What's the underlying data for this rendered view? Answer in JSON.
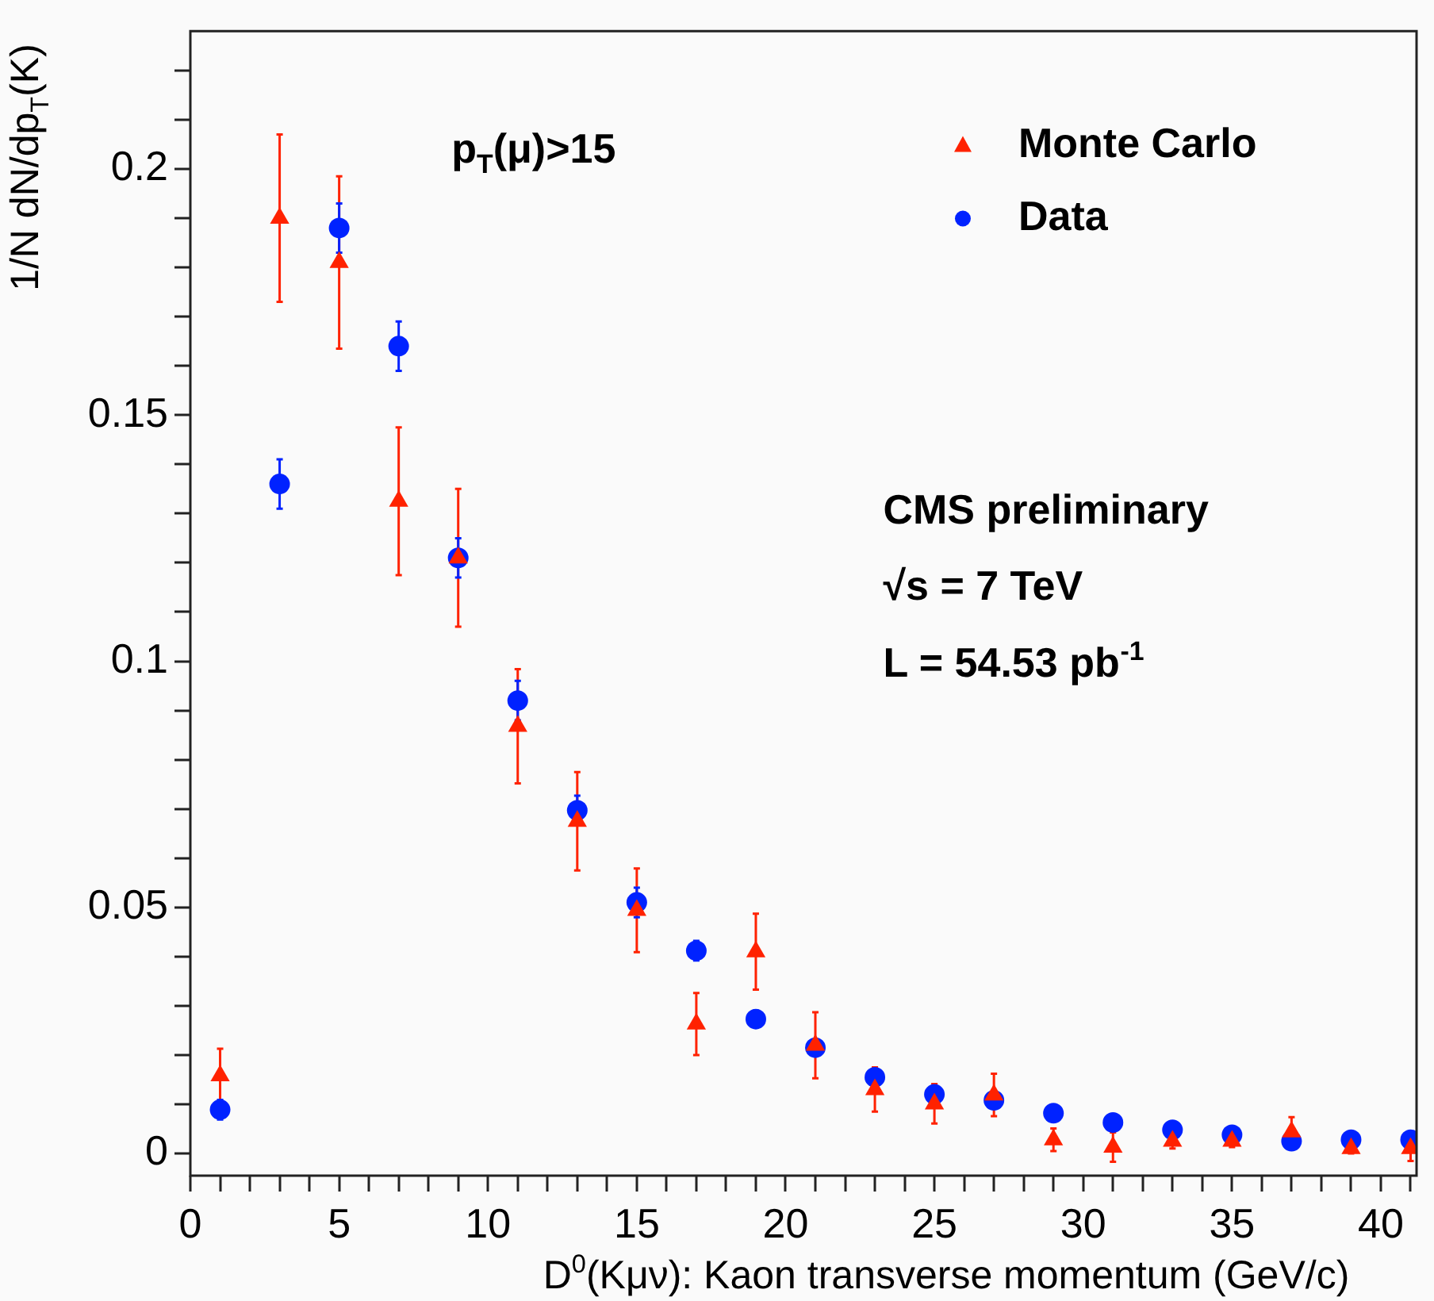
{
  "chart_data": {
    "type": "scatter",
    "xlabel": "D$^{0}$(Kμν): Kaon transverse momentum (GeV/c)",
    "ylabel": "1/N dN/dp$_{T}$(K)",
    "annotations": [
      "p$_{T}$(μ)>15",
      "CMS preliminary",
      "√s = 7 TeV",
      "L = 54.53 pb$^{-1}$"
    ],
    "legend": "top right",
    "grid": false,
    "xlim": [
      0,
      41.2
    ],
    "ylim": [
      -0.0045,
      0.228
    ],
    "xticks": [
      0,
      {
        "value": 1,
        "label": null
      },
      {
        "value": 2,
        "label": null
      },
      {
        "value": 3,
        "label": null
      },
      {
        "value": 4,
        "label": null
      },
      5,
      {
        "value": 6,
        "label": null
      },
      {
        "value": 7,
        "label": null
      },
      {
        "value": 8,
        "label": null
      },
      {
        "value": 9,
        "label": null
      },
      10,
      {
        "value": 11,
        "label": null
      },
      {
        "value": 12,
        "label": null
      },
      {
        "value": 13,
        "label": null
      },
      {
        "value": 14,
        "label": null
      },
      15,
      {
        "value": 16,
        "label": null
      },
      {
        "value": 17,
        "label": null
      },
      {
        "value": 18,
        "label": null
      },
      {
        "value": 19,
        "label": null
      },
      20,
      {
        "value": 21,
        "label": null
      },
      {
        "value": 22,
        "label": null
      },
      {
        "value": 23,
        "label": null
      },
      {
        "value": 24,
        "label": null
      },
      25,
      {
        "value": 26,
        "label": null
      },
      {
        "value": 27,
        "label": null
      },
      {
        "value": 28,
        "label": null
      },
      {
        "value": 29,
        "label": null
      },
      30,
      {
        "value": 31,
        "label": null
      },
      {
        "value": 32,
        "label": null
      },
      {
        "value": 33,
        "label": null
      },
      {
        "value": 34,
        "label": null
      },
      35,
      {
        "value": 36,
        "label": null
      },
      {
        "value": 37,
        "label": null
      },
      {
        "value": 38,
        "label": null
      },
      {
        "value": 39,
        "label": null
      },
      40,
      {
        "value": 41,
        "label": null
      }
    ],
    "yticks": [
      0,
      {
        "value": 0.01,
        "label": null
      },
      {
        "value": 0.02,
        "label": null
      },
      {
        "value": 0.03,
        "label": null
      },
      {
        "value": 0.04,
        "label": null
      },
      0.05,
      {
        "value": 0.06,
        "label": null
      },
      {
        "value": 0.07,
        "label": null
      },
      {
        "value": 0.08,
        "label": null
      },
      {
        "value": 0.09,
        "label": null
      },
      0.1,
      {
        "value": 0.11,
        "label": null
      },
      {
        "value": 0.12,
        "label": null
      },
      {
        "value": 0.13,
        "label": null
      },
      {
        "value": 0.14,
        "label": null
      },
      0.15,
      {
        "value": 0.16,
        "label": null
      },
      {
        "value": 0.17,
        "label": null
      },
      {
        "value": 0.18,
        "label": null
      },
      {
        "value": 0.19,
        "label": null
      },
      0.2,
      {
        "value": 0.21,
        "label": null
      },
      {
        "value": 0.22,
        "label": null
      }
    ],
    "x": [
      1,
      3,
      5,
      7,
      9,
      11,
      13,
      15,
      17,
      19,
      21,
      23,
      25,
      27,
      29,
      31,
      33,
      35,
      37,
      39,
      41
    ],
    "series": [
      {
        "name": "Monte Carlo",
        "color": "#ff2200",
        "marker": "triangle",
        "values": [
          0.0158,
          0.19,
          0.181,
          0.1325,
          0.121,
          0.0868,
          0.0675,
          0.0494,
          0.0263,
          0.041,
          0.022,
          0.013,
          0.0101,
          0.0119,
          0.0028,
          0.0013,
          0.0025,
          0.0025,
          0.0044,
          0.001,
          0.001
        ],
        "errors": [
          0.0055,
          0.017,
          0.0175,
          0.015,
          0.014,
          0.0116,
          0.01,
          0.0085,
          0.0063,
          0.0077,
          0.0067,
          0.0045,
          0.004,
          0.0043,
          0.0023,
          0.003,
          0.0015,
          0.0012,
          0.003,
          0.001,
          0.0025
        ]
      },
      {
        "name": "Data",
        "color": "#0022ff",
        "marker": "circle",
        "values": [
          0.0089,
          0.136,
          0.188,
          0.164,
          0.121,
          0.092,
          0.0697,
          0.051,
          0.0412,
          0.0273,
          0.0215,
          0.0155,
          0.012,
          0.0108,
          0.0082,
          0.0063,
          0.0048,
          0.0038,
          0.0025,
          0.0028,
          0.0028
        ],
        "errors": [
          0.002,
          0.005,
          0.005,
          0.005,
          0.004,
          0.004,
          0.003,
          0.003,
          0.002,
          0.0017,
          0.0015,
          0.0015,
          0.0012,
          0.0012,
          null,
          null,
          null,
          null,
          null,
          null,
          null
        ]
      }
    ]
  }
}
